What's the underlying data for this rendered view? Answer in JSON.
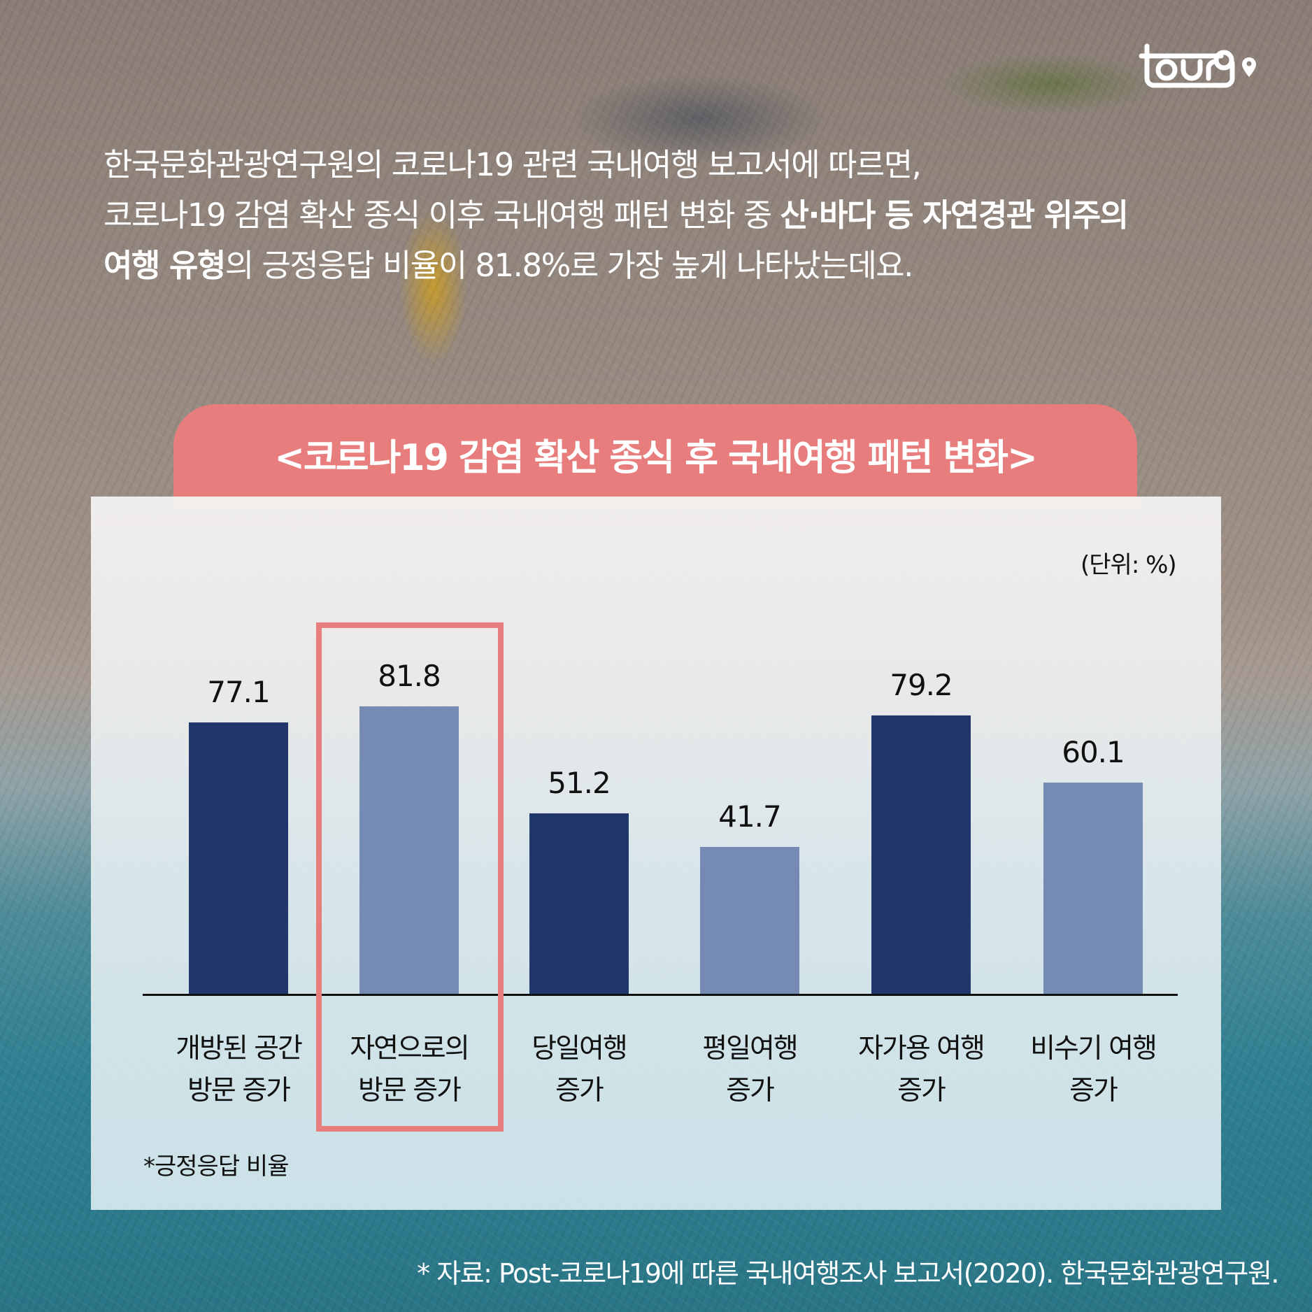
{
  "brand": {
    "logo_text": "tour9",
    "logo_icon": "map-pin-icon"
  },
  "intro": {
    "line1": "한국문화관광연구원의 코로나19 관련 국내여행 보고서에 따르면,",
    "line2_regular": "코로나19 감염 확산 종식 이후 국내여행 패턴 변화 중 ",
    "line2_bold": "산·바다 등 자연경관 위주의",
    "line3_bold": "여행 유형",
    "line3_regular": "의 긍정응답 비율이 81.8%로 가장 높게 나타났는데요."
  },
  "header": {
    "title": "<코로나19 감염 확산 종식 후 국내여행 패턴 변화>"
  },
  "colors": {
    "header_bg": "#e77d7d",
    "highlight_border": "#e77d7d",
    "bar_dark": "#21366b",
    "bar_light": "#768bb3"
  },
  "chart_data": {
    "type": "bar",
    "title": "<코로나19 감염 확산 종식 후 국내여행 패턴 변화>",
    "unit_label": "(단위: %)",
    "categories": [
      "개방된 공간 방문 증가",
      "자연으로의 방문 증가",
      "당일여행 증가",
      "평일여행 증가",
      "자가용 여행 증가",
      "비수기 여행 증가"
    ],
    "category_lines": [
      [
        "개방된 공간",
        "방문 증가"
      ],
      [
        "자연으로의",
        "방문 증가"
      ],
      [
        "당일여행",
        "증가"
      ],
      [
        "평일여행",
        "증가"
      ],
      [
        "자가용 여행",
        "증가"
      ],
      [
        "비수기 여행",
        "증가"
      ]
    ],
    "values": [
      77.1,
      81.8,
      51.2,
      41.7,
      79.2,
      60.1
    ],
    "value_labels": [
      "77.1",
      "81.8",
      "51.2",
      "41.7",
      "79.2",
      "60.1"
    ],
    "bar_colors": [
      "#21366b",
      "#768bb3",
      "#21366b",
      "#768bb3",
      "#21366b",
      "#768bb3"
    ],
    "highlighted_index": 1,
    "xlabel": "",
    "ylabel": "",
    "ylim": [
      0,
      100
    ],
    "grid": false,
    "legend": null,
    "note": "*긍정응답 비율"
  },
  "footnote": "*긍정응답 비율",
  "source": "* 자료: Post-코로나19에 따른 국내여행조사 보고서(2020). 한국문화관광연구원."
}
